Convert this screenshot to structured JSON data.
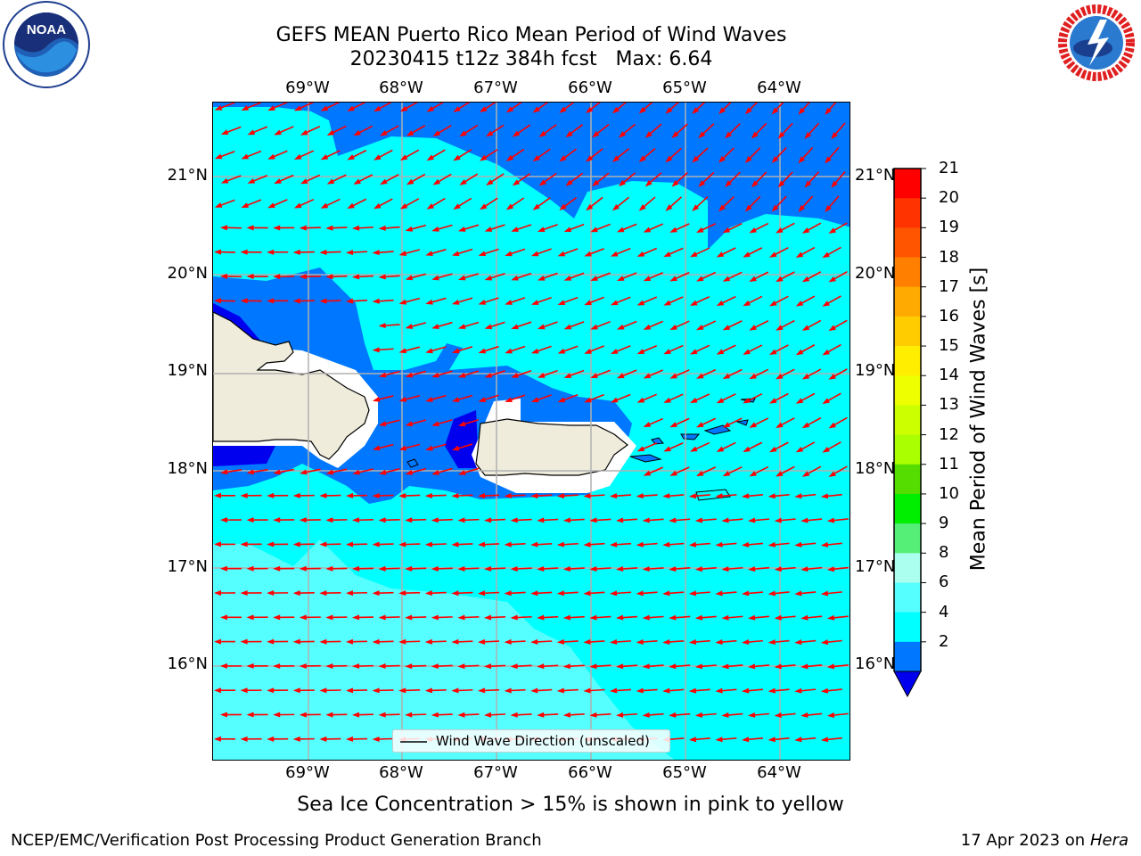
{
  "header": {
    "title_line1": "GEFS MEAN Puerto Rico Mean Period of Wind Waves",
    "title_line2": "20230415 t12z 384h fcst   Max: 6.64"
  },
  "logos": {
    "noaa": {
      "text": "NOAA",
      "ring_text": "NATIONAL OCEANIC AND ATMOSPHERIC ADMINISTRATION  U.S. DEPARTMENT OF COMMERCE"
    },
    "nws": {
      "ring_text": "NATIONAL WEATHER SERVICE"
    }
  },
  "map": {
    "lon_labels": [
      "69°W",
      "68°W",
      "67°W",
      "66°W",
      "65°W",
      "64°W"
    ],
    "lat_labels": [
      "21°N",
      "20°N",
      "19°N",
      "18°N",
      "17°N",
      "16°N"
    ],
    "legend_label": "Wind Wave Direction (unscaled)"
  },
  "colorbar": {
    "label": "Mean Period of Wind Waves [s]",
    "ticks": [
      "21",
      "20",
      "19",
      "18",
      "17",
      "16",
      "15",
      "14",
      "13",
      "12",
      "11",
      "10",
      "9",
      "8",
      "6",
      "4",
      "2"
    ],
    "band_colors": [
      "#ff0000",
      "#ff3300",
      "#ff5500",
      "#ff8000",
      "#ffaa00",
      "#ffcc00",
      "#ffee00",
      "#eeff00",
      "#ccff00",
      "#aaff00",
      "#55dd00",
      "#00ee00",
      "#55ee77",
      "#aaffee",
      "#55ffff",
      "#00ffff",
      "#0077ff"
    ],
    "extend_color": "#0000ee"
  },
  "colors": {
    "land": "#efecdc",
    "arrow": "#ff0000",
    "ocean_6_8": "#55ffff",
    "ocean_4_6": "#00ffff",
    "ocean_2_4": "#0077ff",
    "ocean_lt2": "#0000ee"
  },
  "footer": {
    "subtitle": "Sea Ice Concentration > 15% is shown in pink to yellow",
    "left": "NCEP/EMC/Verification Post Processing Product Generation Branch",
    "right_prefix": "17 Apr 2023 on ",
    "right_system": "Hera"
  }
}
